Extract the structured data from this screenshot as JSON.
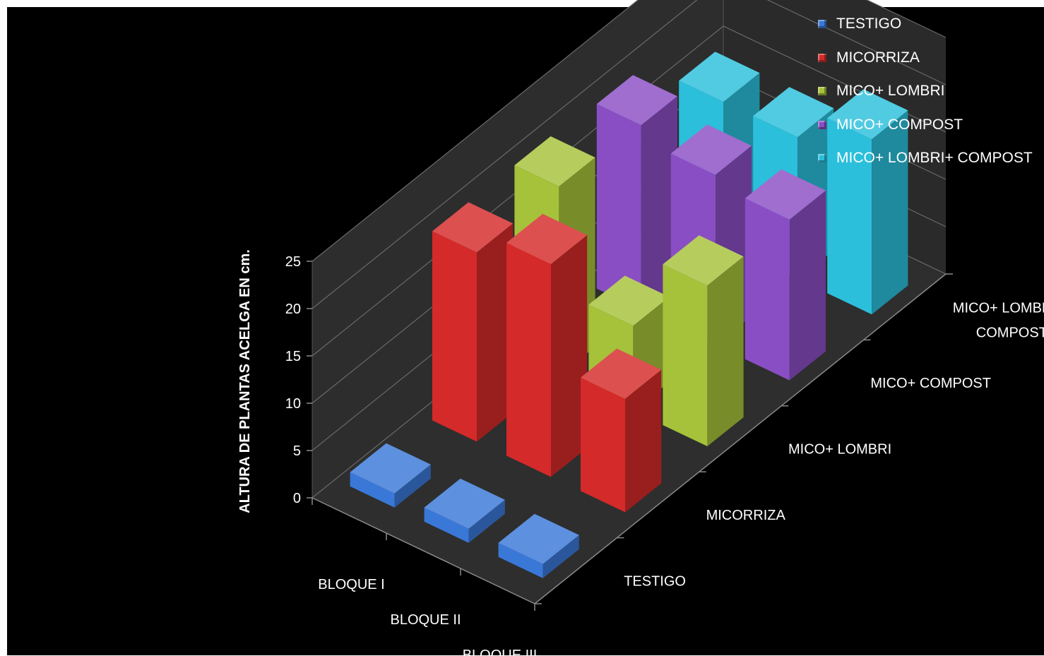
{
  "chart_data": {
    "type": "bar",
    "subtype": "3d-column",
    "title": "",
    "ylabel": "ALTURA  DE PLANTAS ACELGA EN cm.",
    "ylim": [
      0,
      25
    ],
    "yticks": [
      0,
      5,
      10,
      15,
      20,
      25
    ],
    "gridlines": true,
    "legend_position": "top-right",
    "categories": [
      "BLOQUE I",
      "BLOQUE II",
      "BLOQUE III"
    ],
    "depth_labels": [
      {
        "lines": [
          "TESTIGO"
        ]
      },
      {
        "lines": [
          "MICORRIZA"
        ]
      },
      {
        "lines": [
          "MICO+ LOMBRI"
        ]
      },
      {
        "lines": [
          "MICO+  COMPOST"
        ]
      },
      {
        "lines": [
          "MICO+ LOMBRI+",
          "COMPOST"
        ]
      }
    ],
    "series": [
      {
        "name": "TESTIGO",
        "color": "#3a78d8",
        "values": [
          1.5,
          1.5,
          1.5
        ]
      },
      {
        "name": "MICORRIZA",
        "color": "#d42a2a",
        "values": [
          20,
          22.5,
          12
        ]
      },
      {
        "name": "MICO+ LOMBRI",
        "color": "#a6c23a",
        "values": [
          20,
          9,
          17
        ]
      },
      {
        "name": "MICO+  COMPOST",
        "color": "#8a4ec4",
        "values": [
          19.5,
          18,
          17
        ]
      },
      {
        "name": "MICO+ LOMBRI+ COMPOST",
        "color": "#2bbfdc",
        "values": [
          15,
          15,
          18.5
        ]
      }
    ]
  }
}
